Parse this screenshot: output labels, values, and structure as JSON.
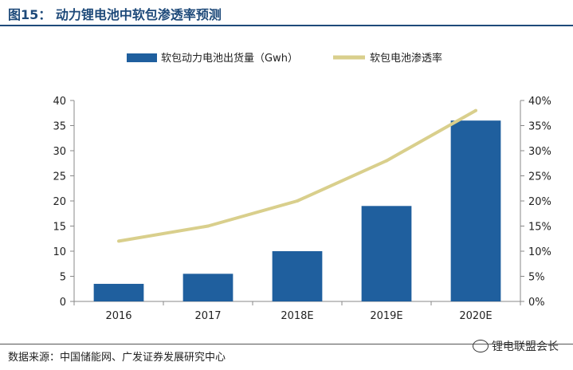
{
  "header": {
    "title": "图15：  动力锂电池中软包渗透率预测"
  },
  "footer": {
    "source": "数据来源：中国储能网、广发证券发展研究中心",
    "watermark": "锂电联盟会长"
  },
  "chart_data": {
    "type": "bar",
    "categories": [
      "2016",
      "2017",
      "2018E",
      "2019E",
      "2020E"
    ],
    "series": [
      {
        "name": "软包动力电池出货量（Gwh）",
        "type": "bar",
        "axis": "left",
        "color": "#1f5f9e",
        "values": [
          3.5,
          5.5,
          10,
          19,
          36
        ]
      },
      {
        "name": "软包电池渗透率",
        "type": "line",
        "axis": "right",
        "color": "#d9cf8c",
        "values": [
          0.12,
          0.15,
          0.2,
          0.28,
          0.38
        ]
      }
    ],
    "ylim": [
      0,
      40
    ],
    "y_ticks": [
      "0",
      "5",
      "10",
      "15",
      "20",
      "25",
      "30",
      "35",
      "40"
    ],
    "y2lim": [
      0,
      0.4
    ],
    "y2_ticks": [
      "0%",
      "5%",
      "10%",
      "15%",
      "20%",
      "25%",
      "30%",
      "35%",
      "40%"
    ],
    "legend_position": "top",
    "grid": false
  }
}
